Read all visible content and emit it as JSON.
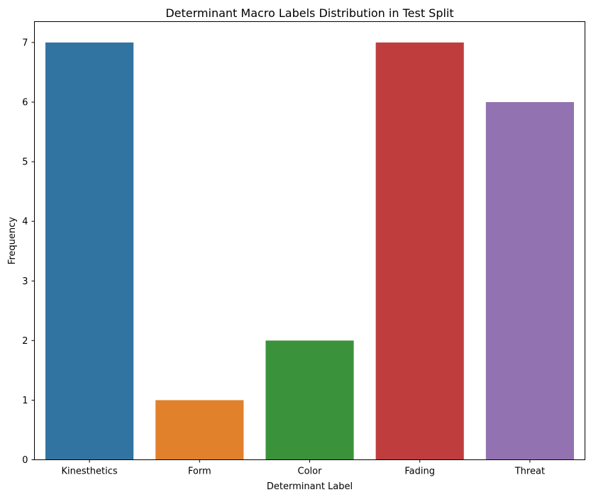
{
  "chart_data": {
    "type": "bar",
    "title": "Determinant Macro Labels Distribution in Test Split",
    "xlabel": "Determinant Label",
    "ylabel": "Frequency",
    "categories": [
      "Kinesthetics",
      "Form",
      "Color",
      "Fading",
      "Threat"
    ],
    "values": [
      7,
      1,
      2,
      7,
      6
    ],
    "colors": [
      "#3274a1",
      "#e1812c",
      "#3a923a",
      "#c03d3e",
      "#9372b2"
    ],
    "ylim": [
      0,
      7.35
    ],
    "yticks": [
      "0",
      "1",
      "2",
      "3",
      "4",
      "5",
      "6",
      "7"
    ],
    "grid": false,
    "legend": "none"
  }
}
